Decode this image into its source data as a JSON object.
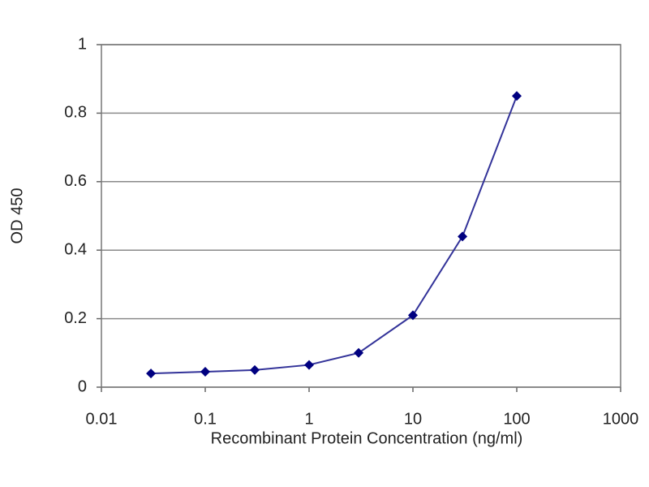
{
  "chart_data": {
    "type": "line",
    "xlabel": "Recombinant Protein Concentration (ng/ml)",
    "ylabel": "OD 450",
    "x": [
      0.03,
      0.1,
      0.3,
      1,
      3,
      10,
      30,
      100
    ],
    "series": [
      {
        "color": "#333399",
        "values": [
          0.04,
          0.045,
          0.05,
          0.065,
          0.1,
          0.21,
          0.44,
          0.85
        ]
      }
    ],
    "marker_color": "#000080",
    "xscale": "log",
    "xlim": [
      0.01,
      1000
    ],
    "xticks": [
      0.01,
      0.1,
      1,
      10,
      100,
      1000
    ],
    "ylim": [
      0,
      1
    ],
    "yticks": [
      0,
      0.2,
      0.4,
      0.6,
      0.8,
      1
    ],
    "grid": true
  }
}
